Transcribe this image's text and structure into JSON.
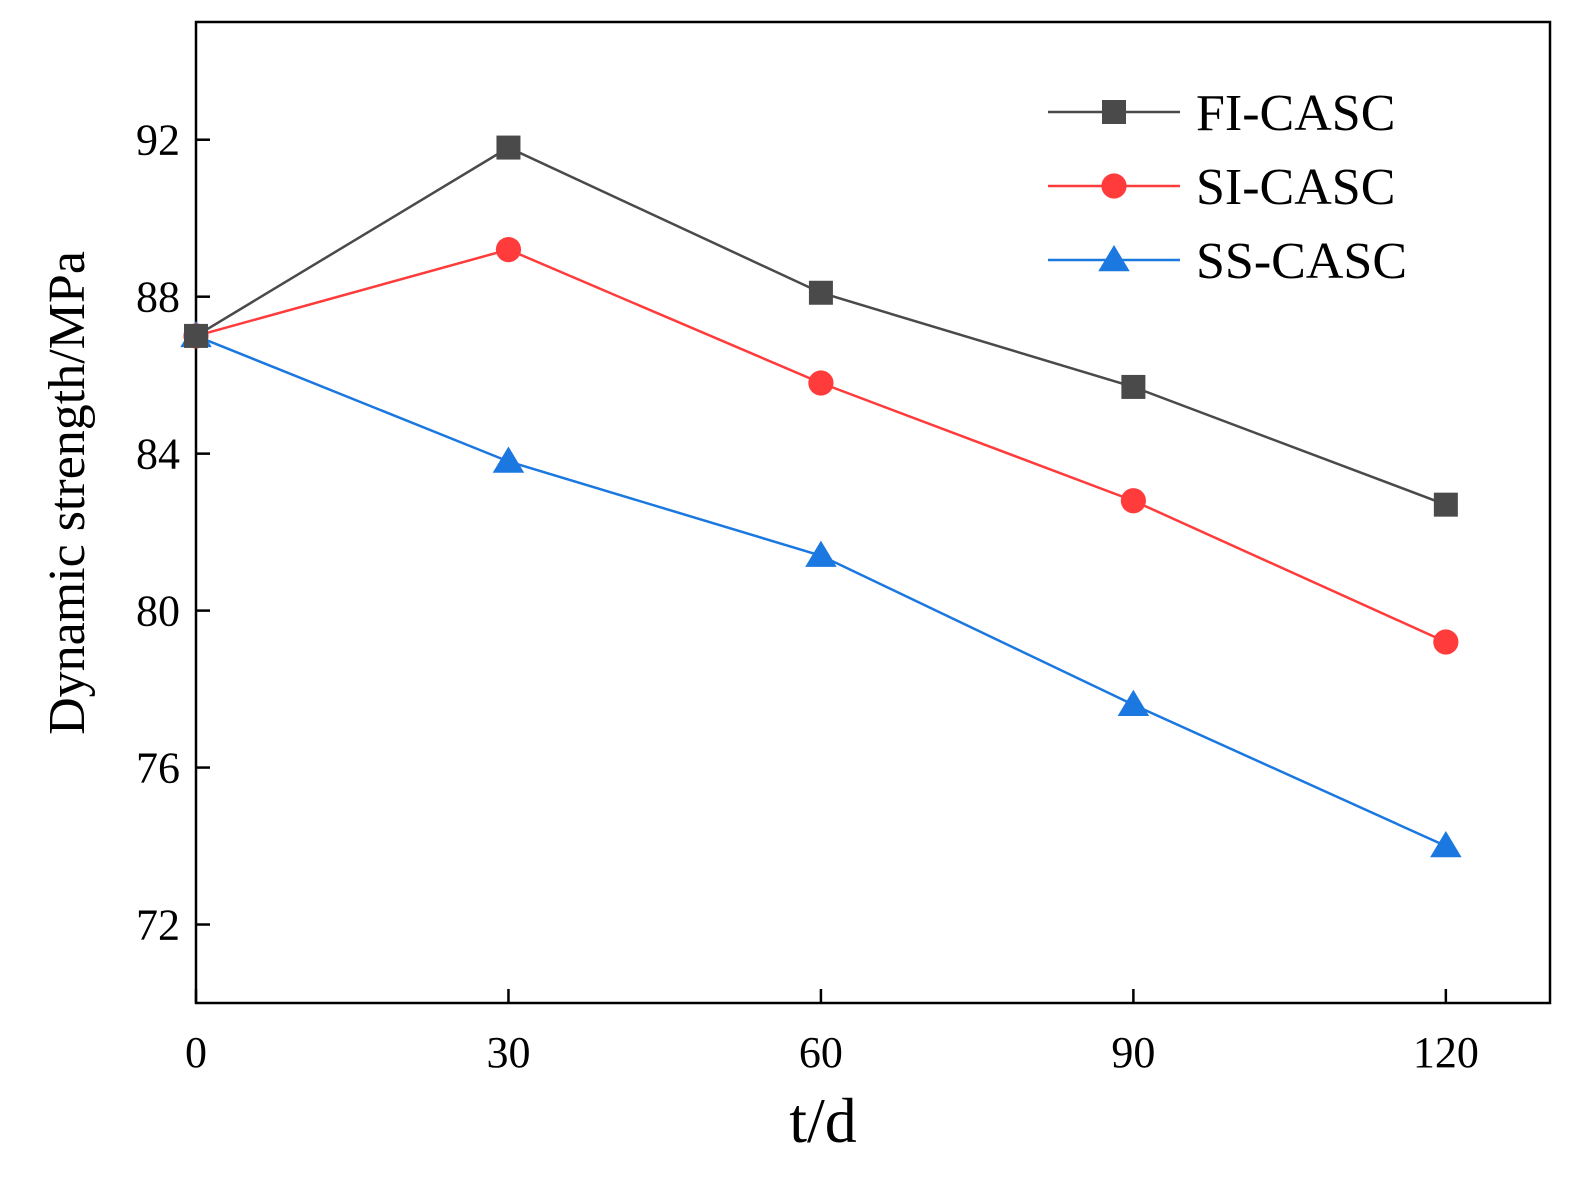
{
  "chart_data": {
    "type": "line",
    "title": "",
    "xlabel": "t/d",
    "ylabel": "Dynamic strength/MPa",
    "x": [
      0,
      30,
      60,
      90,
      120
    ],
    "xlim": [
      0,
      130
    ],
    "ylim": [
      70,
      95
    ],
    "xticks": [
      0,
      30,
      60,
      90,
      120
    ],
    "yticks": [
      72,
      76,
      80,
      84,
      88,
      92
    ],
    "grid": false,
    "legend_position": "top-right",
    "series": [
      {
        "name": "FI-CASC",
        "values": [
          87.0,
          91.8,
          88.1,
          85.7,
          82.7
        ],
        "color": "#4a4a4a",
        "marker": "square"
      },
      {
        "name": "SI-CASC",
        "values": [
          87.0,
          89.2,
          85.8,
          82.8,
          79.2
        ],
        "color": "#ff3b3b",
        "marker": "circle"
      },
      {
        "name": "SS-CASC",
        "values": [
          87.0,
          83.8,
          81.4,
          77.6,
          74.0
        ],
        "color": "#1a78e0",
        "marker": "triangle"
      }
    ]
  }
}
